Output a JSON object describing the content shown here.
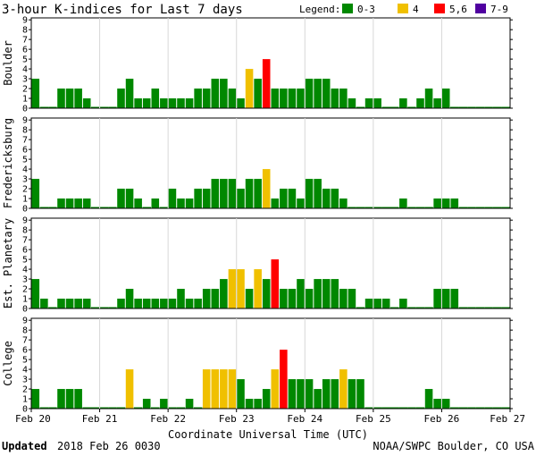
{
  "chart_data": {
    "type": "bar",
    "title": "3-hour K-indices for Last 7 days",
    "legend": {
      "label": "Legend:",
      "items": [
        {
          "label": "0-3",
          "color": "#008800"
        },
        {
          "label": "4",
          "color": "#f0c000"
        },
        {
          "label": "5,6",
          "color": "#ff0000"
        },
        {
          "label": "7-9",
          "color": "#5000a0"
        }
      ]
    },
    "ylim": [
      0,
      9
    ],
    "yticks": [
      "0",
      "1",
      "2",
      "3",
      "4",
      "5",
      "6",
      "7",
      "8",
      "9"
    ],
    "xlabel": "Coordinate Universal Time (UTC)",
    "xticks": [
      "Feb 20",
      "Feb 21",
      "Feb 22",
      "Feb 23",
      "Feb 24",
      "Feb 25",
      "Feb 26",
      "Feb 27"
    ],
    "panels": [
      {
        "name": "Boulder",
        "values": [
          3,
          0,
          0,
          2,
          2,
          2,
          1,
          0,
          0,
          0,
          2,
          3,
          1,
          1,
          2,
          1,
          1,
          1,
          1,
          2,
          2,
          3,
          3,
          2,
          1,
          4,
          3,
          5,
          2,
          2,
          2,
          2,
          3,
          3,
          3,
          2,
          2,
          1,
          0,
          1,
          1,
          0,
          0,
          1,
          0,
          1,
          2,
          1,
          2,
          0,
          0,
          0,
          0,
          0,
          0,
          0
        ]
      },
      {
        "name": "Fredericksburg",
        "values": [
          3,
          0,
          0,
          1,
          1,
          1,
          1,
          0,
          0,
          0,
          2,
          2,
          1,
          0,
          1,
          0,
          2,
          1,
          1,
          2,
          2,
          3,
          3,
          3,
          2,
          3,
          3,
          4,
          1,
          2,
          2,
          1,
          3,
          3,
          2,
          2,
          1,
          0,
          0,
          0,
          0,
          0,
          0,
          1,
          0,
          0,
          0,
          1,
          1,
          1,
          0,
          0,
          0,
          0,
          0,
          0
        ]
      },
      {
        "name": "Est. Planetary",
        "values": [
          3,
          1,
          0,
          1,
          1,
          1,
          1,
          0,
          0,
          0,
          1,
          2,
          1,
          1,
          1,
          1,
          1,
          2,
          1,
          1,
          2,
          2,
          3,
          4,
          4,
          2,
          4,
          3,
          5,
          2,
          2,
          3,
          2,
          3,
          3,
          3,
          2,
          2,
          0,
          1,
          1,
          1,
          0,
          1,
          0,
          0,
          0,
          2,
          2,
          2,
          0,
          0,
          0,
          0,
          0,
          0
        ]
      },
      {
        "name": "College",
        "values": [
          2,
          0,
          0,
          2,
          2,
          2,
          0,
          0,
          0,
          0,
          0,
          4,
          0,
          1,
          0,
          1,
          0,
          0,
          1,
          0,
          4,
          4,
          4,
          4,
          3,
          1,
          1,
          2,
          4,
          6,
          3,
          3,
          3,
          2,
          3,
          3,
          4,
          3,
          3,
          0,
          0,
          0,
          0,
          0,
          0,
          0,
          2,
          1,
          1,
          0,
          0,
          0,
          0,
          0,
          0,
          0
        ]
      }
    ]
  },
  "footer": {
    "updated_label": "Updated",
    "updated_time": "2018 Feb 26 0030",
    "source": "NOAA/SWPC Boulder, CO USA"
  }
}
